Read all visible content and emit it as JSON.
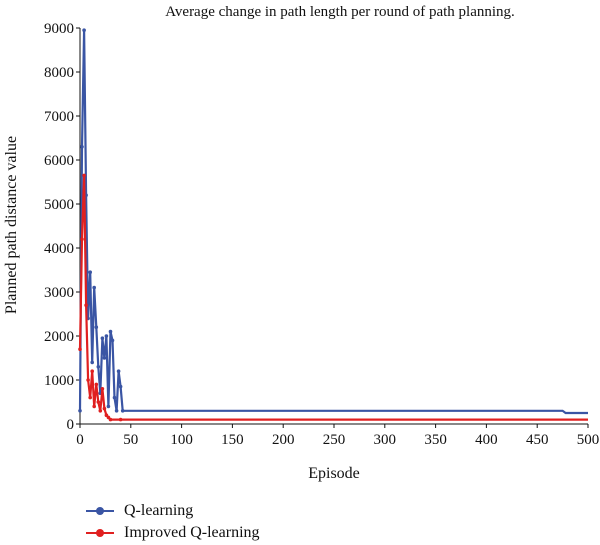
{
  "chart_data": {
    "type": "line",
    "title": "Average change in path length per round of path planning.",
    "xlabel": "Episode",
    "ylabel": "Planned path distance value",
    "xlim": [
      0,
      500
    ],
    "ylim": [
      0,
      9000
    ],
    "x_ticks": [
      "0",
      "50",
      "100",
      "150",
      "200",
      "250",
      "300",
      "350",
      "400",
      "450",
      "500"
    ],
    "y_ticks": [
      "0",
      "1000",
      "2000",
      "3000",
      "4000",
      "5000",
      "6000",
      "7000",
      "8000",
      "9000"
    ],
    "grid": false,
    "legend_position": "bottom-left",
    "series": [
      {
        "name": "Q-learning",
        "color": "#3a55a4",
        "points": [
          [
            0,
            300
          ],
          [
            2,
            6300
          ],
          [
            4,
            8950
          ],
          [
            6,
            5200
          ],
          [
            8,
            2400
          ],
          [
            10,
            3450
          ],
          [
            12,
            1400
          ],
          [
            14,
            3100
          ],
          [
            16,
            2200
          ],
          [
            18,
            1300
          ],
          [
            20,
            700
          ],
          [
            22,
            1950
          ],
          [
            24,
            1500
          ],
          [
            26,
            2000
          ],
          [
            28,
            400
          ],
          [
            30,
            2100
          ],
          [
            32,
            1900
          ],
          [
            34,
            600
          ],
          [
            36,
            300
          ],
          [
            38,
            1200
          ],
          [
            40,
            850
          ],
          [
            42,
            300
          ],
          [
            60,
            300
          ],
          [
            100,
            300
          ],
          [
            200,
            300
          ],
          [
            300,
            300
          ],
          [
            400,
            300
          ],
          [
            475,
            300
          ],
          [
            478,
            250
          ],
          [
            500,
            250
          ]
        ]
      },
      {
        "name": "Improved Q-learning",
        "color": "#e02020",
        "points": [
          [
            0,
            1700
          ],
          [
            2,
            4200
          ],
          [
            4,
            5650
          ],
          [
            6,
            2700
          ],
          [
            8,
            1000
          ],
          [
            10,
            600
          ],
          [
            12,
            1200
          ],
          [
            14,
            400
          ],
          [
            16,
            900
          ],
          [
            18,
            500
          ],
          [
            20,
            300
          ],
          [
            22,
            800
          ],
          [
            24,
            350
          ],
          [
            26,
            200
          ],
          [
            28,
            150
          ],
          [
            30,
            100
          ],
          [
            40,
            100
          ],
          [
            100,
            100
          ],
          [
            200,
            100
          ],
          [
            300,
            100
          ],
          [
            400,
            100
          ],
          [
            500,
            100
          ]
        ]
      }
    ]
  }
}
